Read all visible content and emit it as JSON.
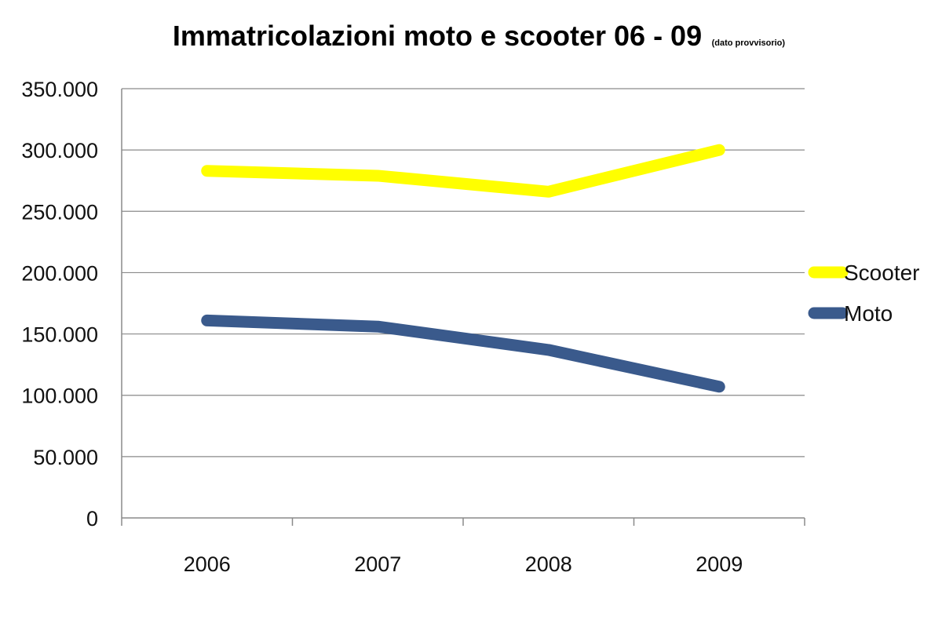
{
  "chart_data": {
    "type": "line",
    "title": "Immatricolazioni moto e scooter 06 - 09",
    "subtitle": "(dato provvisorio)",
    "categories": [
      "2006",
      "2007",
      "2008",
      "2009"
    ],
    "yticks": [
      "0",
      "50.000",
      "100.000",
      "150.000",
      "200.000",
      "250.000",
      "300.000",
      "350.000"
    ],
    "ylim": [
      0,
      350000
    ],
    "grid": true,
    "legend_position": "right",
    "series": [
      {
        "name": "Scooter",
        "color": "#ffff00",
        "values": [
          283000,
          279000,
          266000,
          300000
        ]
      },
      {
        "name": "Moto",
        "color": "#3a5a8c",
        "values": [
          161000,
          156000,
          137000,
          107000
        ]
      }
    ]
  }
}
